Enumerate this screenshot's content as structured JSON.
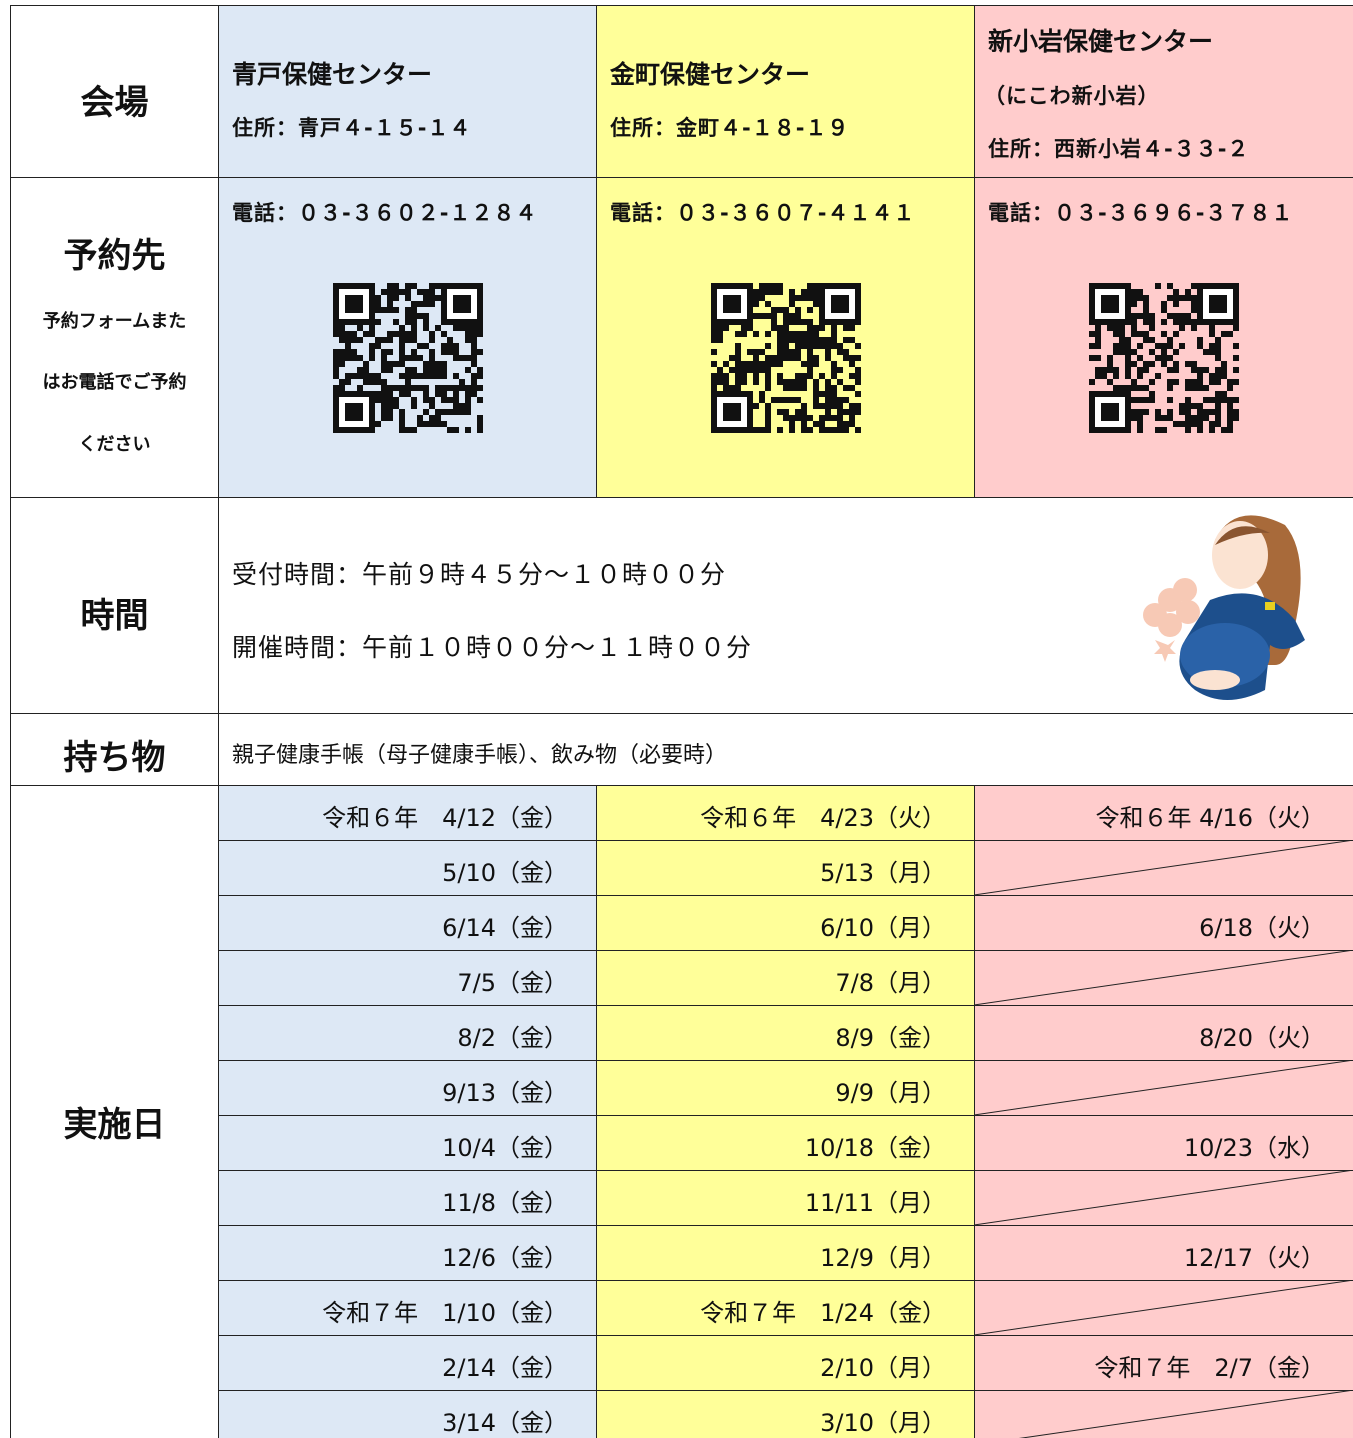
{
  "table": {
    "venue_label": "会場",
    "reservation_label": "予約先",
    "reservation_note": [
      "予約フォームまた",
      "はお電話でご予約",
      "ください"
    ],
    "time_label": "時間",
    "items_label": "持ち物",
    "dates_label": "実施日",
    "centers": [
      {
        "name": "青戸保健センター",
        "address": "住所：青戸４-１５-１４",
        "phone": "電話：０３-３６０２-１２８４"
      },
      {
        "name": "金町保健センター",
        "address": "住所：金町４-１８-１９",
        "phone": "電話：０３-３６０７-４１４１"
      },
      {
        "name": "新小岩保健センター",
        "subtitle": "（にこわ新小岩）",
        "address": "住所：西新小岩４-３３-２",
        "phone": "電話：０３-３６９６-３７８１"
      }
    ],
    "times": [
      "受付時間：午前９時４５分～１０時００分",
      "開催時間：午前１０時００分～１１時００分"
    ],
    "items": "親子健康手帳（母子健康手帳）、飲み物（必要時）",
    "dates": [
      [
        "令和６年　4/12（金）",
        "令和６年　4/23（火）",
        "令和６年 4/16（火）"
      ],
      [
        "5/10（金）",
        "5/13（月）",
        null
      ],
      [
        "6/14（金）",
        "6/10（月）",
        "6/18（火）"
      ],
      [
        "7/5（金）",
        "7/8（月）",
        null
      ],
      [
        "8/2（金）",
        "8/9（金）",
        "8/20（火）"
      ],
      [
        "9/13（金）",
        "9/9（月）",
        null
      ],
      [
        "10/4（金）",
        "10/18（金）",
        "10/23（水）"
      ],
      [
        "11/8（金）",
        "11/11（月）",
        null
      ],
      [
        "12/6（金）",
        "12/9（月）",
        "12/17（火）"
      ],
      [
        "令和７年　1/10（金）",
        "令和７年　1/24（金）",
        null
      ],
      [
        "2/14（金）",
        "2/10（月）",
        "令和７年　2/7（金）"
      ],
      [
        "3/14（金）",
        "3/10（月）",
        null
      ]
    ]
  }
}
